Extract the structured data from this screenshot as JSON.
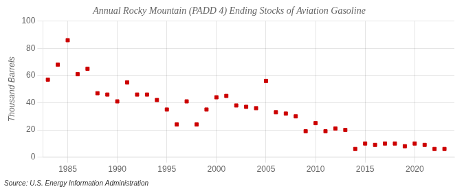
{
  "chart_data": {
    "type": "scatter",
    "title": "Annual Rocky Mountain (PADD 4) Ending Stocks of Aviation Gasoline",
    "ylabel": "Thousand Barrels",
    "annotation": "Source: U.S. Energy Information Administration",
    "x": [
      1983,
      1984,
      1985,
      1986,
      1987,
      1988,
      1989,
      1990,
      1991,
      1992,
      1993,
      1994,
      1995,
      1996,
      1997,
      1998,
      1999,
      2000,
      2001,
      2002,
      2003,
      2004,
      2005,
      2006,
      2007,
      2008,
      2009,
      2010,
      2011,
      2012,
      2013,
      2014,
      2015,
      2016,
      2017,
      2018,
      2019,
      2020,
      2021,
      2022,
      2023
    ],
    "values": [
      57,
      68,
      86,
      61,
      65,
      47,
      46,
      41,
      55,
      46,
      46,
      42,
      35,
      24,
      41,
      24,
      35,
      44,
      45,
      38,
      37,
      36,
      56,
      33,
      32,
      30,
      19,
      25,
      19,
      21,
      20,
      6,
      10,
      9,
      10,
      10,
      8,
      10,
      9,
      6,
      6
    ],
    "color": "#cc0000",
    "marker": "square",
    "xlim": [
      1982.5,
      2024
    ],
    "xticks": [
      1985,
      1990,
      1995,
      2000,
      2005,
      2010,
      2015,
      2020
    ],
    "ylim": [
      0,
      100
    ],
    "yticks": [
      0,
      20,
      40,
      60,
      80,
      100
    ],
    "grid": true
  }
}
